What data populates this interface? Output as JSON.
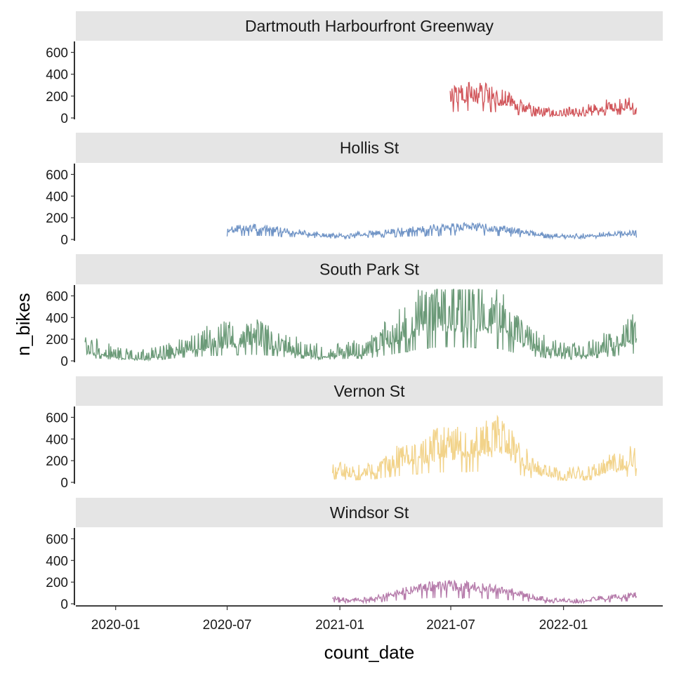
{
  "chart_data": {
    "type": "line",
    "facet_by": "location",
    "xlabel": "count_date",
    "ylabel": "n_bikes",
    "x_ticks": [
      "2020-01",
      "2020-07",
      "2021-01",
      "2021-07",
      "2022-01"
    ],
    "y_ticks": [
      0,
      200,
      400,
      600
    ],
    "ylim": [
      0,
      700
    ],
    "xlim": [
      "2019-10-28",
      "2022-06-12"
    ],
    "grid": false,
    "legend": "none",
    "strip_color": "#e5e5e5",
    "panels": [
      {
        "title": "Dartmouth Harbourfront Greenway",
        "color": "#d1555a",
        "start": "2021-06-30",
        "end": "2022-04-30",
        "approx_points": [
          [
            "2021-07-01",
            150
          ],
          [
            "2021-08-01",
            190
          ],
          [
            "2021-09-01",
            170
          ],
          [
            "2021-10-01",
            120
          ],
          [
            "2021-11-01",
            60
          ],
          [
            "2021-12-01",
            30
          ],
          [
            "2022-01-01",
            25
          ],
          [
            "2022-02-01",
            50
          ],
          [
            "2022-03-01",
            70
          ],
          [
            "2022-04-30",
            100
          ]
        ],
        "approx_amplitude": 120,
        "approx_spike_frequency": 0.48
      },
      {
        "title": "Hollis St",
        "color": "#7094c6",
        "start": "2020-07-01",
        "end": "2022-04-30",
        "approx_points": [
          [
            "2020-07-01",
            80
          ],
          [
            "2020-08-01",
            95
          ],
          [
            "2020-09-01",
            95
          ],
          [
            "2020-10-01",
            70
          ],
          [
            "2020-11-01",
            55
          ],
          [
            "2020-12-01",
            30
          ],
          [
            "2021-01-01",
            25
          ],
          [
            "2021-03-01",
            50
          ],
          [
            "2021-05-01",
            80
          ],
          [
            "2021-07-01",
            105
          ],
          [
            "2021-09-01",
            100
          ],
          [
            "2021-10-01",
            80
          ],
          [
            "2021-11-01",
            50
          ],
          [
            "2022-01-01",
            20
          ],
          [
            "2022-03-01",
            35
          ],
          [
            "2022-04-30",
            50
          ]
        ],
        "approx_amplitude": 55,
        "approx_spike_frequency": 0.4
      },
      {
        "title": "South Park St",
        "color": "#6b9a78",
        "start": "2019-11-12",
        "end": "2022-04-30",
        "approx_points": [
          [
            "2019-11-12",
            80
          ],
          [
            "2019-12-15",
            50
          ],
          [
            "2020-01-15",
            20
          ],
          [
            "2020-02-15",
            20
          ],
          [
            "2020-03-15",
            35
          ],
          [
            "2020-04-15",
            80
          ],
          [
            "2020-05-15",
            110
          ],
          [
            "2020-06-15",
            140
          ],
          [
            "2020-07-15",
            155
          ],
          [
            "2020-08-15",
            160
          ],
          [
            "2020-09-15",
            130
          ],
          [
            "2020-10-15",
            80
          ],
          [
            "2020-11-15",
            45
          ],
          [
            "2020-12-15",
            40
          ],
          [
            "2021-01-15",
            55
          ],
          [
            "2021-02-15",
            60
          ],
          [
            "2021-03-15",
            140
          ],
          [
            "2021-04-15",
            220
          ],
          [
            "2021-05-15",
            320
          ],
          [
            "2021-06-15",
            360
          ],
          [
            "2021-07-15",
            360
          ],
          [
            "2021-08-15",
            340
          ],
          [
            "2021-09-15",
            330
          ],
          [
            "2021-10-15",
            200
          ],
          [
            "2021-11-15",
            110
          ],
          [
            "2021-12-15",
            60
          ],
          [
            "2022-01-15",
            40
          ],
          [
            "2022-02-15",
            55
          ],
          [
            "2022-03-15",
            110
          ],
          [
            "2022-04-30",
            200
          ]
        ],
        "approx_amplitude": 200,
        "approx_spike_frequency": 0.45
      },
      {
        "title": "Vernon St",
        "color": "#f2d38a",
        "start": "2020-12-20",
        "end": "2022-04-30",
        "approx_points": [
          [
            "2020-12-20",
            90
          ],
          [
            "2021-01-15",
            60
          ],
          [
            "2021-02-15",
            70
          ],
          [
            "2021-03-15",
            120
          ],
          [
            "2021-04-15",
            180
          ],
          [
            "2021-05-15",
            230
          ],
          [
            "2021-06-15",
            260
          ],
          [
            "2021-07-15",
            270
          ],
          [
            "2021-08-15",
            280
          ],
          [
            "2021-09-15",
            320
          ],
          [
            "2021-10-15",
            220
          ],
          [
            "2021-11-15",
            90
          ],
          [
            "2021-12-15",
            50
          ],
          [
            "2022-01-15",
            45
          ],
          [
            "2022-02-15",
            60
          ],
          [
            "2022-03-15",
            110
          ],
          [
            "2022-04-30",
            170
          ]
        ],
        "approx_amplitude": 150,
        "approx_spike_frequency": 0.45
      },
      {
        "title": "Windsor St",
        "color": "#b57aaa",
        "start": "2020-12-20",
        "end": "2022-04-30",
        "approx_points": [
          [
            "2020-12-20",
            40
          ],
          [
            "2021-01-15",
            25
          ],
          [
            "2021-02-15",
            30
          ],
          [
            "2021-03-15",
            60
          ],
          [
            "2021-04-15",
            100
          ],
          [
            "2021-05-15",
            140
          ],
          [
            "2021-06-15",
            160
          ],
          [
            "2021-07-15",
            150
          ],
          [
            "2021-08-15",
            140
          ],
          [
            "2021-09-15",
            130
          ],
          [
            "2021-10-15",
            90
          ],
          [
            "2021-11-15",
            45
          ],
          [
            "2021-12-15",
            25
          ],
          [
            "2022-01-15",
            20
          ],
          [
            "2022-02-15",
            30
          ],
          [
            "2022-03-15",
            50
          ],
          [
            "2022-04-30",
            70
          ]
        ],
        "approx_amplitude": 55,
        "approx_spike_frequency": 0.45
      }
    ]
  }
}
